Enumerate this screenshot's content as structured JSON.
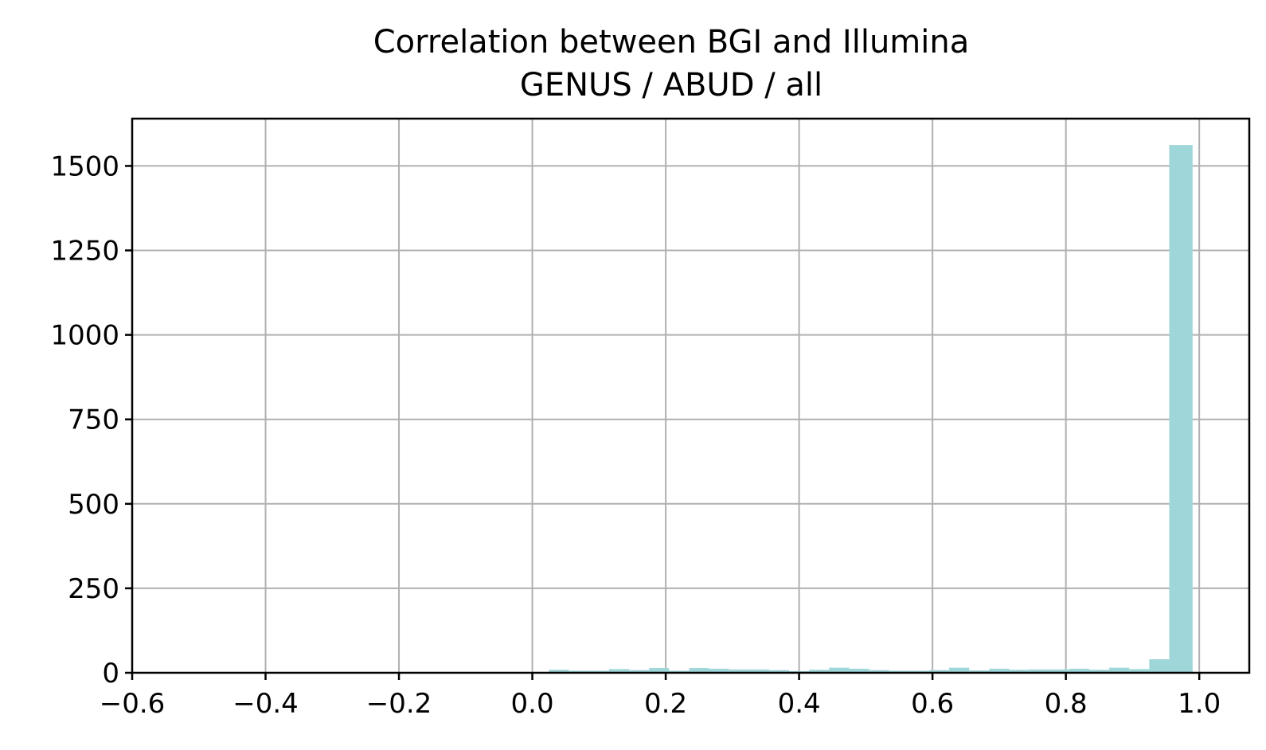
{
  "chart_data": {
    "type": "bar",
    "title_line1": "Correlation between BGI and Illumina",
    "title_line2": "GENUS / ABUD / all",
    "xlabel": "",
    "ylabel": "",
    "xlim": [
      -0.6,
      1.075
    ],
    "ylim": [
      0,
      1640
    ],
    "grid": true,
    "bar_color": "#9fd6d9",
    "xticks": [
      {
        "value": -0.6,
        "label": "−0.6"
      },
      {
        "value": -0.4,
        "label": "−0.4"
      },
      {
        "value": -0.2,
        "label": "−0.2"
      },
      {
        "value": 0.0,
        "label": "0.0"
      },
      {
        "value": 0.2,
        "label": "0.2"
      },
      {
        "value": 0.4,
        "label": "0.4"
      },
      {
        "value": 0.6,
        "label": "0.6"
      },
      {
        "value": 0.8,
        "label": "0.8"
      },
      {
        "value": 1.0,
        "label": "1.0"
      }
    ],
    "yticks": [
      {
        "value": 0,
        "label": "0"
      },
      {
        "value": 250,
        "label": "250"
      },
      {
        "value": 500,
        "label": "500"
      },
      {
        "value": 750,
        "label": "750"
      },
      {
        "value": 1000,
        "label": "1000"
      },
      {
        "value": 1250,
        "label": "1250"
      },
      {
        "value": 1500,
        "label": "1500"
      }
    ],
    "bins": [
      {
        "x0": 0.025,
        "x1": 0.055,
        "count": 9
      },
      {
        "x0": 0.055,
        "x1": 0.085,
        "count": 6
      },
      {
        "x0": 0.085,
        "x1": 0.115,
        "count": 6
      },
      {
        "x0": 0.115,
        "x1": 0.145,
        "count": 11
      },
      {
        "x0": 0.145,
        "x1": 0.175,
        "count": 8
      },
      {
        "x0": 0.175,
        "x1": 0.205,
        "count": 14
      },
      {
        "x0": 0.205,
        "x1": 0.235,
        "count": 6
      },
      {
        "x0": 0.235,
        "x1": 0.265,
        "count": 14
      },
      {
        "x0": 0.265,
        "x1": 0.295,
        "count": 12
      },
      {
        "x0": 0.295,
        "x1": 0.325,
        "count": 10
      },
      {
        "x0": 0.325,
        "x1": 0.355,
        "count": 10
      },
      {
        "x0": 0.355,
        "x1": 0.385,
        "count": 8
      },
      {
        "x0": 0.385,
        "x1": 0.415,
        "count": 5
      },
      {
        "x0": 0.415,
        "x1": 0.445,
        "count": 9
      },
      {
        "x0": 0.445,
        "x1": 0.475,
        "count": 15
      },
      {
        "x0": 0.475,
        "x1": 0.505,
        "count": 12
      },
      {
        "x0": 0.505,
        "x1": 0.535,
        "count": 8
      },
      {
        "x0": 0.535,
        "x1": 0.565,
        "count": 6
      },
      {
        "x0": 0.565,
        "x1": 0.595,
        "count": 6
      },
      {
        "x0": 0.595,
        "x1": 0.625,
        "count": 8
      },
      {
        "x0": 0.625,
        "x1": 0.655,
        "count": 15
      },
      {
        "x0": 0.655,
        "x1": 0.685,
        "count": 7
      },
      {
        "x0": 0.685,
        "x1": 0.715,
        "count": 12
      },
      {
        "x0": 0.715,
        "x1": 0.745,
        "count": 9
      },
      {
        "x0": 0.745,
        "x1": 0.775,
        "count": 10
      },
      {
        "x0": 0.775,
        "x1": 0.805,
        "count": 10
      },
      {
        "x0": 0.805,
        "x1": 0.835,
        "count": 12
      },
      {
        "x0": 0.835,
        "x1": 0.865,
        "count": 9
      },
      {
        "x0": 0.865,
        "x1": 0.895,
        "count": 15
      },
      {
        "x0": 0.895,
        "x1": 0.925,
        "count": 11
      },
      {
        "x0": 0.925,
        "x1": 0.955,
        "count": 40
      },
      {
        "x0": 0.955,
        "x1": 0.99,
        "count": 1562
      }
    ]
  }
}
